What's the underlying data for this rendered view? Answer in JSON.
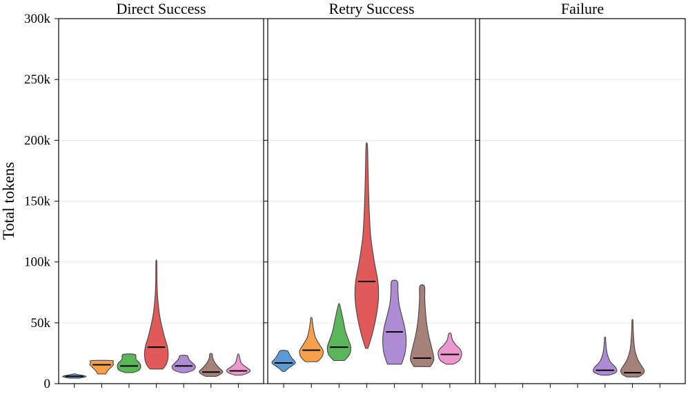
{
  "chart_data": {
    "type": "violin",
    "ylabel": "Total tokens",
    "ylim": [
      0,
      300000
    ],
    "yticks": [
      0,
      50000,
      100000,
      150000,
      200000,
      250000,
      300000
    ],
    "ytick_labels": [
      "0",
      "50k",
      "100k",
      "150k",
      "200k",
      "250k",
      "300k"
    ],
    "grid": true,
    "categories_per_panel": 7,
    "series_colors": [
      "#5b9bd5",
      "#f5a04a",
      "#5bb55b",
      "#e05a5a",
      "#ae8cd4",
      "#a6817a",
      "#ec98cf"
    ],
    "panels": [
      {
        "title": "Direct Success",
        "violins": [
          {
            "index": 0,
            "min": 4500,
            "max": 8000,
            "median": 6000,
            "shape": [
              [
                4500,
                0.35
              ],
              [
                5200,
                0.8
              ],
              [
                6000,
                1.0
              ],
              [
                6800,
                0.7
              ],
              [
                7500,
                0.3
              ],
              [
                8000,
                0.05
              ]
            ]
          },
          {
            "index": 1,
            "min": 8000,
            "max": 19000,
            "median": 15500,
            "shape": [
              [
                8000,
                0.35
              ],
              [
                10500,
                0.5
              ],
              [
                13000,
                0.75
              ],
              [
                15500,
                1.0
              ],
              [
                17500,
                0.95
              ],
              [
                19000,
                0.85
              ]
            ]
          },
          {
            "index": 2,
            "min": 9000,
            "max": 24000,
            "median": 14500,
            "shape": [
              [
                9000,
                0.3
              ],
              [
                11000,
                0.85
              ],
              [
                14000,
                1.0
              ],
              [
                17000,
                0.9
              ],
              [
                20000,
                0.6
              ],
              [
                24000,
                0.5
              ]
            ]
          },
          {
            "index": 3,
            "min": 12000,
            "max": 100000,
            "median": 30000,
            "shape": [
              [
                12000,
                0.55
              ],
              [
                16000,
                0.85
              ],
              [
                22000,
                1.0
              ],
              [
                30000,
                0.95
              ],
              [
                40000,
                0.65
              ],
              [
                55000,
                0.3
              ],
              [
                70000,
                0.12
              ],
              [
                85000,
                0.05
              ],
              [
                100000,
                0.04
              ]
            ]
          },
          {
            "index": 4,
            "min": 9000,
            "max": 23000,
            "median": 14500,
            "shape": [
              [
                9000,
                0.2
              ],
              [
                11000,
                0.8
              ],
              [
                14000,
                1.0
              ],
              [
                17000,
                0.75
              ],
              [
                20000,
                0.45
              ],
              [
                23000,
                0.3
              ]
            ]
          },
          {
            "index": 5,
            "min": 6000,
            "max": 24500,
            "median": 9500,
            "shape": [
              [
                6000,
                0.45
              ],
              [
                8000,
                0.85
              ],
              [
                10000,
                1.0
              ],
              [
                13000,
                0.7
              ],
              [
                17000,
                0.35
              ],
              [
                21000,
                0.15
              ],
              [
                24500,
                0.1
              ]
            ]
          },
          {
            "index": 6,
            "min": 7000,
            "max": 24000,
            "median": 10500,
            "shape": [
              [
                7000,
                0.3
              ],
              [
                9000,
                0.85
              ],
              [
                11000,
                1.0
              ],
              [
                14000,
                0.6
              ],
              [
                17000,
                0.25
              ],
              [
                20000,
                0.15
              ],
              [
                24000,
                0.05
              ]
            ]
          }
        ]
      },
      {
        "title": "Retry Success",
        "violins": [
          {
            "index": 0,
            "min": 10000,
            "max": 27000,
            "median": 17000,
            "shape": [
              [
                10000,
                0.1
              ],
              [
                13000,
                0.45
              ],
              [
                17000,
                1.0
              ],
              [
                21000,
                0.7
              ],
              [
                24000,
                0.5
              ],
              [
                27000,
                0.3
              ]
            ]
          },
          {
            "index": 1,
            "min": 18000,
            "max": 54000,
            "median": 27500,
            "shape": [
              [
                18000,
                0.5
              ],
              [
                22000,
                0.9
              ],
              [
                27000,
                1.0
              ],
              [
                32000,
                0.7
              ],
              [
                38000,
                0.35
              ],
              [
                45000,
                0.18
              ],
              [
                50000,
                0.1
              ],
              [
                54000,
                0.05
              ]
            ]
          },
          {
            "index": 2,
            "min": 19000,
            "max": 65000,
            "median": 30000,
            "shape": [
              [
                19000,
                0.45
              ],
              [
                24000,
                0.9
              ],
              [
                30000,
                1.0
              ],
              [
                36000,
                0.8
              ],
              [
                43000,
                0.55
              ],
              [
                50000,
                0.4
              ],
              [
                57000,
                0.25
              ],
              [
                65000,
                0.05
              ]
            ]
          },
          {
            "index": 3,
            "min": 29000,
            "max": 196000,
            "median": 84000,
            "shape": [
              [
                29000,
                0.1
              ],
              [
                40000,
                0.45
              ],
              [
                55000,
                0.8
              ],
              [
                70000,
                1.0
              ],
              [
                84000,
                0.95
              ],
              [
                100000,
                0.65
              ],
              [
                120000,
                0.35
              ],
              [
                140000,
                0.22
              ],
              [
                160000,
                0.15
              ],
              [
                180000,
                0.1
              ],
              [
                196000,
                0.06
              ]
            ]
          },
          {
            "index": 4,
            "min": 16000,
            "max": 84000,
            "median": 42500,
            "shape": [
              [
                16000,
                0.6
              ],
              [
                25000,
                0.9
              ],
              [
                35000,
                1.0
              ],
              [
                45000,
                0.9
              ],
              [
                55000,
                0.65
              ],
              [
                65000,
                0.4
              ],
              [
                75000,
                0.3
              ],
              [
                84000,
                0.25
              ]
            ]
          },
          {
            "index": 5,
            "min": 14000,
            "max": 80000,
            "median": 21000,
            "shape": [
              [
                14000,
                0.7
              ],
              [
                20000,
                1.0
              ],
              [
                30000,
                0.8
              ],
              [
                40000,
                0.55
              ],
              [
                50000,
                0.38
              ],
              [
                60000,
                0.28
              ],
              [
                70000,
                0.22
              ],
              [
                80000,
                0.2
              ]
            ]
          },
          {
            "index": 6,
            "min": 16000,
            "max": 41000,
            "median": 24000,
            "shape": [
              [
                16000,
                0.3
              ],
              [
                19000,
                0.8
              ],
              [
                24000,
                1.0
              ],
              [
                28000,
                0.9
              ],
              [
                32000,
                0.5
              ],
              [
                36000,
                0.22
              ],
              [
                41000,
                0.1
              ]
            ]
          }
        ]
      },
      {
        "title": "Failure",
        "violins": [
          {
            "index": 4,
            "min": 7000,
            "max": 38000,
            "median": 11000,
            "shape": [
              [
                7000,
                0.35
              ],
              [
                9000,
                0.9
              ],
              [
                11000,
                1.0
              ],
              [
                14000,
                0.85
              ],
              [
                18000,
                0.45
              ],
              [
                24000,
                0.2
              ],
              [
                30000,
                0.1
              ],
              [
                35000,
                0.06
              ],
              [
                38000,
                0.04
              ]
            ]
          },
          {
            "index": 5,
            "min": 5500,
            "max": 52000,
            "median": 9000,
            "shape": [
              [
                5500,
                0.5
              ],
              [
                8000,
                0.9
              ],
              [
                11000,
                1.0
              ],
              [
                15000,
                0.75
              ],
              [
                20000,
                0.45
              ],
              [
                27000,
                0.22
              ],
              [
                35000,
                0.12
              ],
              [
                45000,
                0.06
              ],
              [
                52000,
                0.04
              ]
            ]
          }
        ]
      }
    ]
  }
}
